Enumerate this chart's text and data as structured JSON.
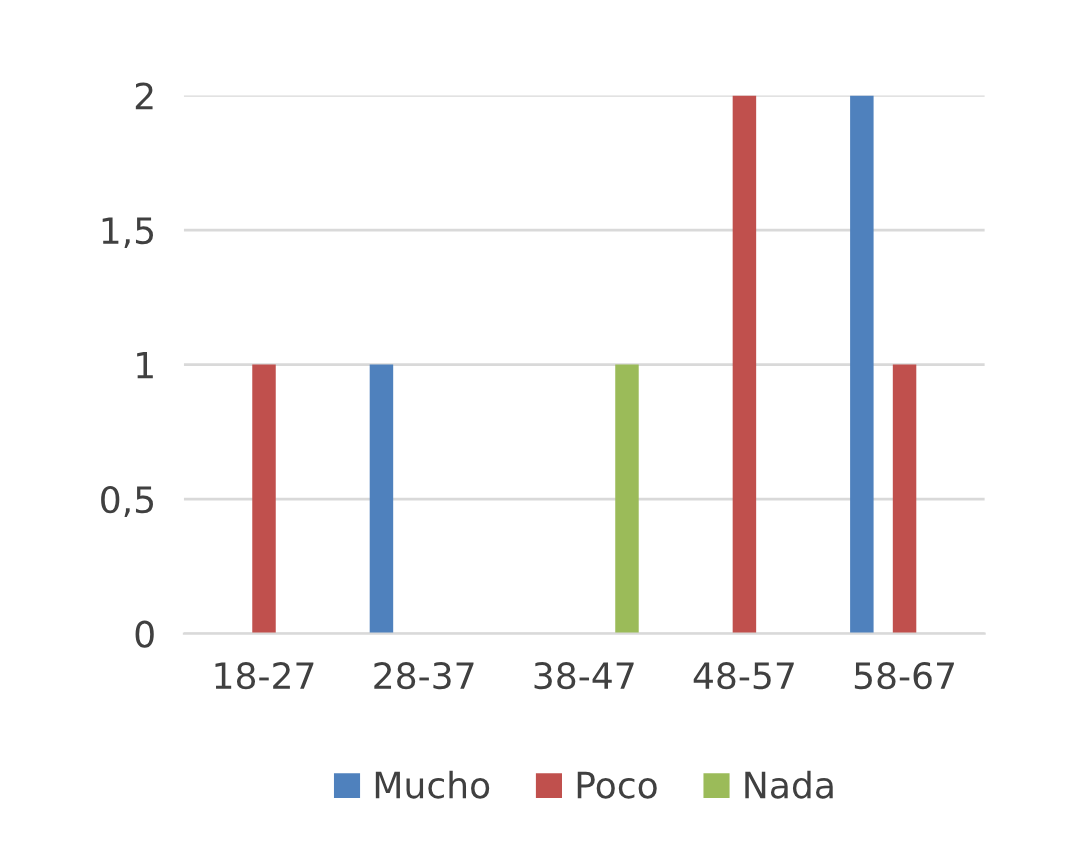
{
  "chart_data": {
    "type": "bar",
    "categories": [
      "18-27",
      "28-37",
      "38-47",
      "48-57",
      "58-67"
    ],
    "series": [
      {
        "name": "Mucho",
        "color": "#4f81bd",
        "values": [
          0,
          1,
          0,
          0,
          2
        ]
      },
      {
        "name": "Poco",
        "color": "#c0504d",
        "values": [
          1,
          0,
          0,
          2,
          1
        ]
      },
      {
        "name": "Nada",
        "color": "#9bbb59",
        "values": [
          0,
          0,
          1,
          0,
          0
        ]
      }
    ],
    "ylim": [
      0,
      2
    ],
    "yticks": [
      0,
      {
        "value": 0.5,
        "label": "0,5"
      },
      1,
      {
        "value": 1.5,
        "label": "1,5"
      },
      2
    ],
    "grid": "y",
    "legend": "bottom"
  }
}
